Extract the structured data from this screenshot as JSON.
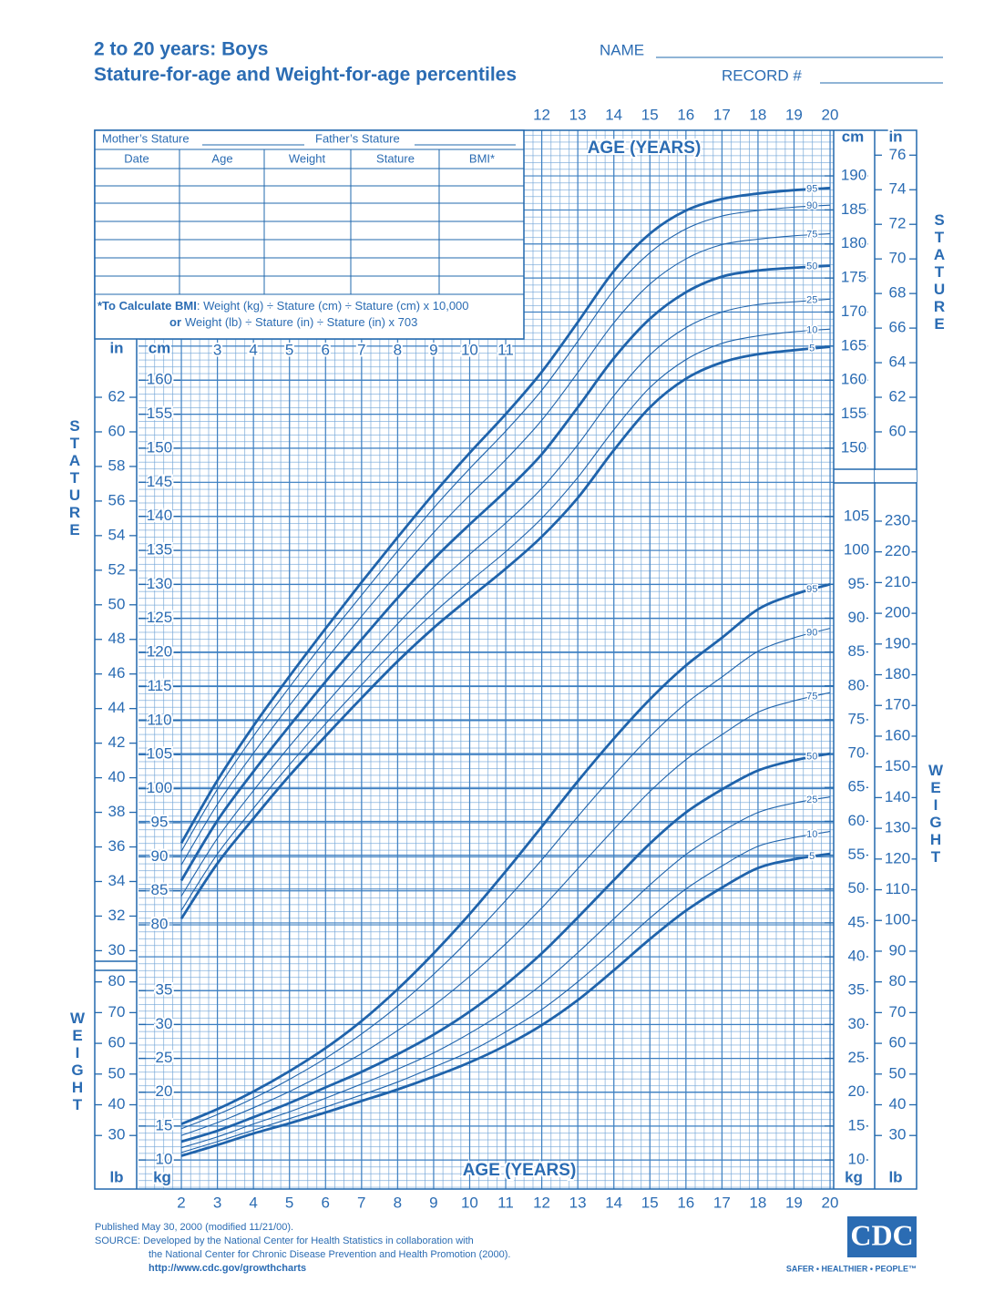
{
  "header": {
    "title": "2 to 20 years: Boys",
    "subtitle": "Stature-for-age and Weight-for-age percentiles",
    "name_label": "NAME",
    "record_label": "RECORD #"
  },
  "form": {
    "mother": "Mother’s Stature",
    "father": "Father’s Stature",
    "columns": [
      "Date",
      "Age",
      "Weight",
      "Stature",
      "BMI*"
    ],
    "note_line1_bold": "*To Calculate BMI",
    "note_line1": ": Weight (kg) ÷ Stature (cm) ÷ Stature (cm) x 10,000",
    "note_line2_bold": "or",
    "note_line2": "Weight (lb) ÷ Stature (in) ÷ Stature (in) x 703"
  },
  "chart_data": [
    {
      "type": "line",
      "xlabel": "AGE (YEARS)",
      "ylabel": "STATURE",
      "y_unit": "cm",
      "y2_unit": "in",
      "x": [
        2,
        3,
        4,
        5,
        6,
        7,
        8,
        9,
        10,
        11,
        12,
        13,
        14,
        15,
        16,
        17,
        18,
        19,
        20
      ],
      "xlim": [
        2,
        20
      ],
      "xticks": [
        12,
        13,
        14,
        15,
        16,
        17,
        18,
        19,
        20
      ],
      "xticks_inner": [
        3,
        4,
        5,
        6,
        7,
        8,
        9,
        10,
        11
      ],
      "ylim": [
        76,
        197
      ],
      "yticks": [
        80,
        85,
        90,
        95,
        100,
        105,
        110,
        115,
        120,
        125,
        130,
        135,
        140,
        145,
        150,
        155,
        160
      ],
      "yticks_right": [
        150,
        155,
        160,
        165,
        170,
        175,
        180,
        185,
        190
      ],
      "y2lim": [
        29.921,
        77.559
      ],
      "y2ticks": [
        30,
        32,
        34,
        36,
        38,
        40,
        42,
        44,
        46,
        48,
        50,
        52,
        54,
        56,
        58,
        60,
        62
      ],
      "y2ticks_right": [
        60,
        62,
        64,
        66,
        68,
        70,
        72,
        74,
        76
      ],
      "grid": true,
      "series": [
        {
          "name": "95",
          "color": "#1f63ab",
          "bold": true,
          "values": [
            92.0,
            101.2,
            109.2,
            116.5,
            123.5,
            130.3,
            136.9,
            143.3,
            149.3,
            155.0,
            161.2,
            168.5,
            176.0,
            181.5,
            184.9,
            186.6,
            187.4,
            187.9,
            188.2
          ]
        },
        {
          "name": "90",
          "color": "#1f63ab",
          "bold": false,
          "values": [
            90.8,
            99.9,
            107.7,
            114.9,
            121.8,
            128.4,
            134.9,
            141.2,
            147.0,
            152.5,
            158.5,
            165.7,
            173.2,
            178.7,
            182.2,
            184.1,
            184.9,
            185.4,
            185.7
          ]
        },
        {
          "name": "75",
          "color": "#1f63ab",
          "bold": false,
          "values": [
            88.8,
            97.7,
            105.2,
            112.2,
            118.9,
            125.3,
            131.6,
            137.6,
            143.1,
            148.3,
            154.1,
            161.1,
            168.4,
            174.1,
            177.8,
            179.9,
            180.7,
            181.2,
            181.5
          ]
        },
        {
          "name": "50",
          "color": "#1f63ab",
          "bold": true,
          "values": [
            86.5,
            95.3,
            102.5,
            109.2,
            115.7,
            121.9,
            128.0,
            133.7,
            138.8,
            143.7,
            149.1,
            156.0,
            163.2,
            169.0,
            172.9,
            175.2,
            176.1,
            176.5,
            176.8
          ]
        },
        {
          "name": "25",
          "color": "#1f63ab",
          "bold": false,
          "values": [
            84.2,
            92.7,
            99.7,
            106.2,
            112.4,
            118.4,
            124.2,
            129.6,
            134.4,
            139.0,
            144.1,
            150.5,
            157.7,
            163.7,
            167.7,
            170.0,
            171.1,
            171.5,
            171.9
          ]
        },
        {
          "name": "10",
          "color": "#1f63ab",
          "bold": false,
          "values": [
            82.1,
            90.4,
            97.1,
            103.5,
            109.5,
            115.2,
            120.8,
            125.8,
            130.4,
            134.8,
            139.7,
            145.7,
            152.7,
            158.9,
            163.0,
            165.4,
            166.5,
            167.1,
            167.5
          ]
        },
        {
          "name": "5",
          "color": "#1f63ab",
          "bold": true,
          "values": [
            80.9,
            89.0,
            95.6,
            101.9,
            107.7,
            113.3,
            118.7,
            123.6,
            128.0,
            132.3,
            137.0,
            142.7,
            149.7,
            156.0,
            160.2,
            162.6,
            163.8,
            164.4,
            164.9
          ]
        }
      ]
    },
    {
      "type": "line",
      "xlabel": "AGE (YEARS)",
      "ylabel": "WEIGHT",
      "y_unit": "kg",
      "y2_unit": "lb",
      "x": [
        2,
        3,
        4,
        5,
        6,
        7,
        8,
        9,
        10,
        11,
        12,
        13,
        14,
        15,
        16,
        17,
        18,
        19,
        20
      ],
      "xlim": [
        2,
        20
      ],
      "xticks": [
        2,
        3,
        4,
        5,
        6,
        7,
        8,
        9,
        10,
        11,
        12,
        13,
        14,
        15,
        16,
        17,
        18,
        19,
        20
      ],
      "ylim": [
        5.7,
        110
      ],
      "yticks": [
        10,
        15,
        20,
        25,
        30,
        35
      ],
      "yticks_right": [
        10,
        15,
        20,
        25,
        30,
        35,
        40,
        45,
        50,
        55,
        60,
        65,
        70,
        75,
        80,
        85,
        90,
        95,
        100,
        105
      ],
      "y2lim": [
        12.566,
        242.51
      ],
      "y2ticks": [
        30,
        40,
        50,
        60,
        70,
        80
      ],
      "y2ticks_right": [
        30,
        40,
        50,
        60,
        70,
        80,
        90,
        100,
        110,
        120,
        130,
        140,
        150,
        160,
        170,
        180,
        190,
        200,
        210,
        220,
        230
      ],
      "grid": true,
      "series": [
        {
          "name": "95",
          "color": "#1f63ab",
          "bold": true,
          "values": [
            15.3,
            17.5,
            20.1,
            23.1,
            26.5,
            30.5,
            35.2,
            40.5,
            46.3,
            52.6,
            59.2,
            65.9,
            72.2,
            78.0,
            83.0,
            87.1,
            91.3,
            93.5,
            95.0
          ]
        },
        {
          "name": "90",
          "color": "#1f63ab",
          "bold": false,
          "values": [
            14.6,
            16.7,
            19.1,
            21.9,
            25.0,
            28.6,
            32.7,
            37.4,
            42.6,
            48.3,
            54.3,
            60.7,
            66.8,
            72.5,
            77.4,
            81.3,
            85.1,
            87.1,
            88.5
          ]
        },
        {
          "name": "75",
          "color": "#1f63ab",
          "bold": false,
          "values": [
            13.6,
            15.5,
            17.7,
            20.1,
            22.8,
            25.7,
            29.1,
            32.8,
            37.1,
            41.9,
            47.2,
            53.0,
            58.8,
            64.4,
            69.1,
            72.8,
            76.1,
            77.8,
            79.0
          ]
        },
        {
          "name": "50",
          "color": "#1f63ab",
          "bold": true,
          "values": [
            12.7,
            14.3,
            16.3,
            18.4,
            20.7,
            23.0,
            25.6,
            28.5,
            31.9,
            35.9,
            40.5,
            45.8,
            51.3,
            56.7,
            61.3,
            64.7,
            67.5,
            69.0,
            70.0
          ]
        },
        {
          "name": "25",
          "color": "#1f63ab",
          "bold": false,
          "values": [
            11.8,
            13.4,
            15.3,
            17.1,
            19.1,
            21.2,
            23.4,
            25.8,
            28.7,
            32.0,
            35.9,
            40.6,
            45.6,
            50.6,
            55.1,
            58.5,
            61.3,
            62.7,
            63.6
          ]
        },
        {
          "name": "10",
          "color": "#1f63ab",
          "bold": false,
          "values": [
            11.1,
            12.7,
            14.4,
            16.1,
            17.8,
            19.6,
            21.5,
            23.7,
            26.0,
            28.9,
            32.2,
            36.3,
            40.9,
            45.7,
            50.0,
            53.4,
            56.3,
            57.6,
            58.5
          ]
        },
        {
          "name": "5",
          "color": "#1f63ab",
          "bold": true,
          "values": [
            10.6,
            12.2,
            13.9,
            15.4,
            17.0,
            18.7,
            20.4,
            22.3,
            24.4,
            26.9,
            29.9,
            33.6,
            38.0,
            42.6,
            46.8,
            50.2,
            53.1,
            54.4,
            55.2
          ]
        }
      ]
    }
  ],
  "footer": {
    "published": "Published May 30, 2000 (modified 11/21/00).",
    "source1": "SOURCE: Developed by the National Center for Health Statistics in collaboration with",
    "source2": "the National Center for Chronic Disease Prevention and Health Promotion (2000).",
    "url": "http://www.cdc.gov/growthcharts",
    "logo": "CDC",
    "slogan": "SAFER • HEALTHIER • PEOPLE™"
  }
}
